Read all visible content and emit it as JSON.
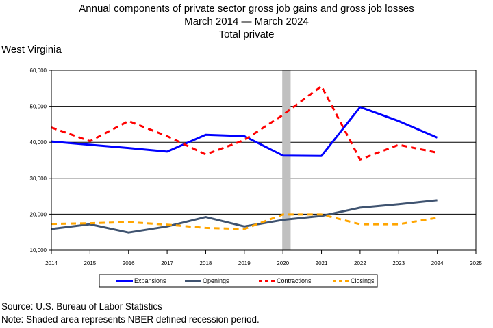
{
  "title": {
    "line1": "Annual components of private sector gross job gains and gross job losses",
    "line2": "March 2014 — March 2024",
    "line3": "Total private"
  },
  "state": "West Virginia",
  "footer": {
    "source": "Source: U.S. Bureau of Labor Statistics",
    "note": "Note: Shaded area represents NBER defined recession period."
  },
  "chart_data": {
    "type": "line",
    "x": [
      2014,
      2015,
      2016,
      2017,
      2018,
      2019,
      2020,
      2021,
      2022,
      2023,
      2024
    ],
    "xlim": [
      2014,
      2025
    ],
    "x_ticks": [
      "2014",
      "2015",
      "2016",
      "2017",
      "2018",
      "2019",
      "2020",
      "2021",
      "2022",
      "2023",
      "2024",
      "2025"
    ],
    "ylim": [
      10000,
      60000
    ],
    "y_ticks": [
      {
        "value": 10000,
        "label": "10,000"
      },
      {
        "value": 20000,
        "label": "20,000"
      },
      {
        "value": 30000,
        "label": "30,000"
      },
      {
        "value": 40000,
        "label": "40,000"
      },
      {
        "value": 50000,
        "label": "50,000"
      },
      {
        "value": 60000,
        "label": "60,000"
      }
    ],
    "grid": "horizontal",
    "recession_band": {
      "start": 2020.0,
      "end": 2020.2,
      "color": "#c0c0c0"
    },
    "legend_position": "bottom",
    "series": [
      {
        "name": "Expansions",
        "color": "#0000ff",
        "style": "solid",
        "width": 3,
        "values": [
          40200,
          39300,
          38400,
          37400,
          42100,
          41700,
          36300,
          36200,
          49800,
          45900,
          41300
        ]
      },
      {
        "name": "Openings",
        "color": "#3f5370",
        "style": "solid",
        "width": 3,
        "values": [
          15900,
          17200,
          14900,
          16600,
          19200,
          16600,
          18400,
          19500,
          21800,
          22800,
          23900
        ]
      },
      {
        "name": "Contractions",
        "color": "#ff0000",
        "style": "dashed",
        "width": 3,
        "values": [
          44100,
          40300,
          45900,
          41700,
          36600,
          40600,
          47600,
          55600,
          35200,
          39300,
          37100
        ]
      },
      {
        "name": "Closings",
        "color": "#ffa500",
        "style": "dashed",
        "width": 3,
        "values": [
          17300,
          17500,
          17800,
          17100,
          16200,
          15900,
          19900,
          19900,
          17200,
          17200,
          19000
        ]
      }
    ]
  }
}
